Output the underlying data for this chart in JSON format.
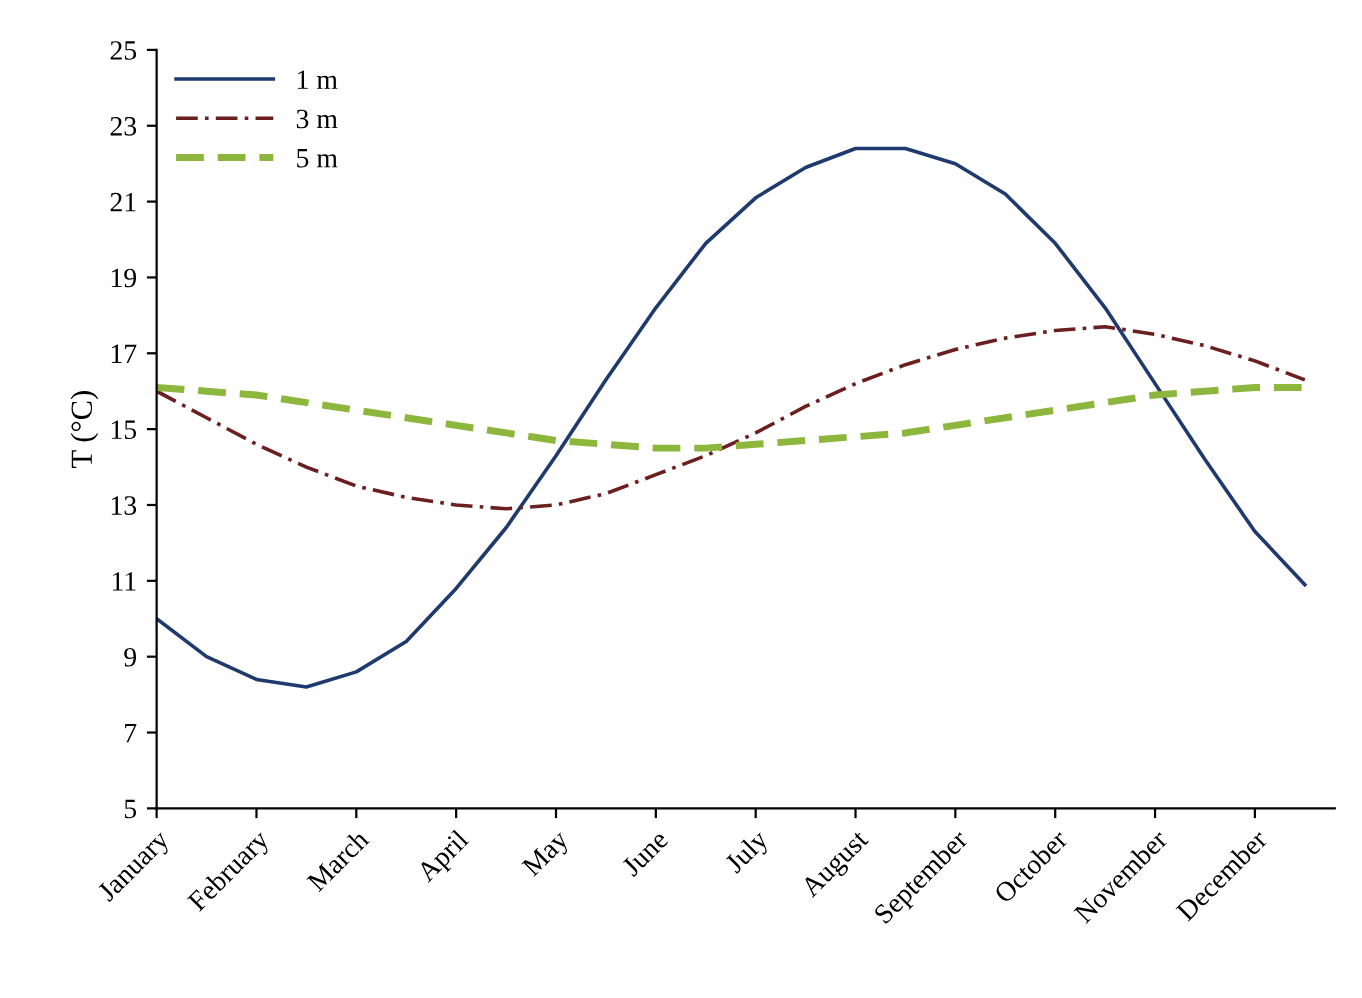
{
  "chart_data": {
    "type": "line",
    "ylabel": "T (°C)",
    "ylim": [
      5,
      25
    ],
    "yticks": [
      5,
      7,
      9,
      11,
      13,
      15,
      17,
      19,
      21,
      23,
      25
    ],
    "categories": [
      "January",
      null,
      "February",
      null,
      "March",
      null,
      "April",
      null,
      "May",
      null,
      "June",
      null,
      "July",
      null,
      "August",
      null,
      "September",
      null,
      "October",
      null,
      "November",
      null,
      "December",
      null
    ],
    "grid": false,
    "legend": "top left",
    "marker": "none",
    "series": [
      {
        "name": "1 m",
        "color": "#1f3a6e",
        "line_style": "solid",
        "values": [
          10.0,
          9.0,
          8.4,
          8.2,
          8.6,
          9.4,
          10.8,
          12.4,
          14.3,
          16.3,
          18.2,
          19.9,
          21.1,
          21.9,
          22.4,
          22.4,
          22.0,
          21.2,
          19.9,
          18.2,
          16.2,
          14.2,
          12.3,
          10.9
        ]
      },
      {
        "name": "3 m",
        "color": "#6b1f1f",
        "line_style": "dashdot",
        "values": [
          16.0,
          15.3,
          14.6,
          14.0,
          13.5,
          13.2,
          13.0,
          12.9,
          13.0,
          13.3,
          13.8,
          14.3,
          14.9,
          15.6,
          16.2,
          16.7,
          17.1,
          17.4,
          17.6,
          17.7,
          17.5,
          17.2,
          16.8,
          16.3
        ]
      },
      {
        "name": "5 m",
        "color": "#8db63c",
        "line_style": "dashed",
        "values": [
          16.1,
          16.0,
          15.9,
          15.7,
          15.5,
          15.3,
          15.1,
          14.9,
          14.7,
          14.6,
          14.5,
          14.5,
          14.6,
          14.7,
          14.8,
          14.9,
          15.1,
          15.3,
          15.5,
          15.7,
          15.9,
          16.0,
          16.1,
          16.1
        ]
      }
    ]
  }
}
